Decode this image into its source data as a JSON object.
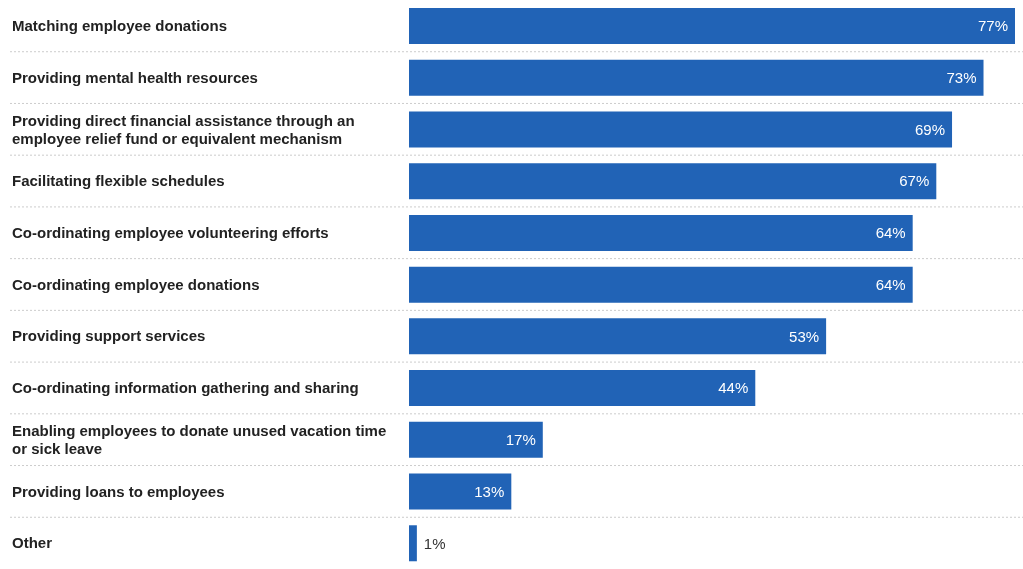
{
  "chart_data": {
    "type": "bar",
    "orientation": "horizontal",
    "categories": [
      "Matching employee donations",
      "Providing mental health resources",
      "Providing direct financial assistance through an employee relief fund or equivalent mechanism",
      "Facilitating flexible schedules",
      "Co-ordinating employee volunteering efforts",
      "Co-ordinating employee donations",
      "Providing support services",
      "Co-ordinating information gathering and sharing",
      "Enabling employees to donate unused vacation time or sick leave",
      "Providing loans to employees",
      "Other"
    ],
    "values": [
      77,
      73,
      69,
      67,
      64,
      64,
      53,
      44,
      17,
      13,
      1
    ],
    "value_labels": [
      "77%",
      "73%",
      "69%",
      "67%",
      "64%",
      "64%",
      "53%",
      "44%",
      "17%",
      "13%",
      "1%"
    ],
    "color": "#2163b6",
    "grid": "y",
    "tick_labels": "y"
  }
}
